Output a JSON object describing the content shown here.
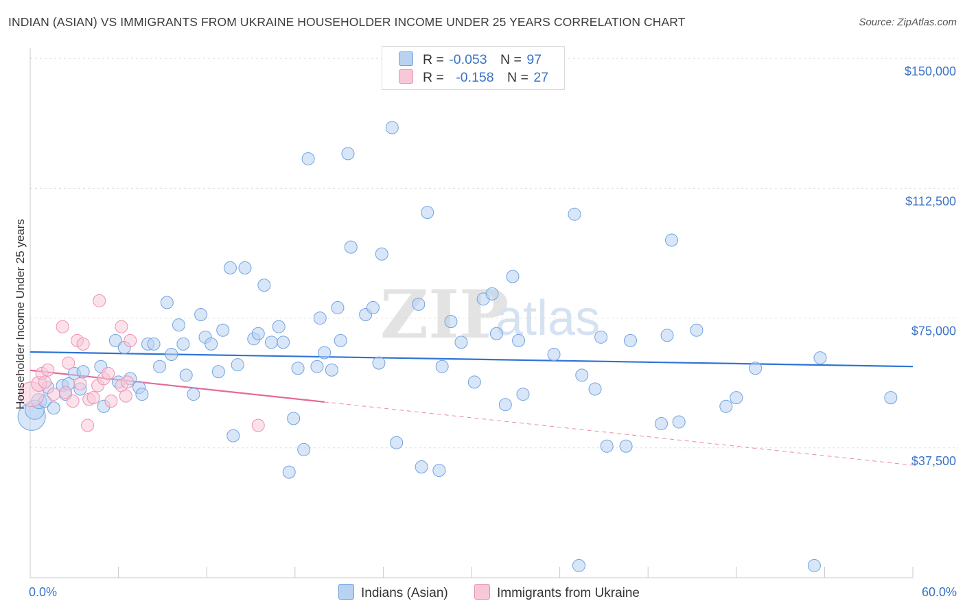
{
  "chart_data": {
    "type": "scatter",
    "title": "INDIAN (ASIAN) VS IMMIGRANTS FROM UKRAINE HOUSEHOLDER INCOME UNDER 25 YEARS CORRELATION CHART",
    "source": "Source: ZipAtlas.com",
    "watermark": {
      "zip": "ZIP",
      "atlas": "atlas"
    },
    "ylabel": "Householder Income Under 25 years",
    "xlim": [
      0,
      60
    ],
    "ylim": [
      0,
      153000
    ],
    "x_tick_labels": [
      "0.0%",
      "60.0%"
    ],
    "y_ticks": [
      37500,
      75000,
      112500,
      150000
    ],
    "y_tick_labels": [
      "$37,500",
      "$75,000",
      "$112,500",
      "$150,000"
    ],
    "legend": {
      "rows": [
        {
          "r_label": "R =",
          "r_value": "-0.053",
          "n_label": "N =",
          "n_value": "97"
        },
        {
          "r_label": "R =",
          "r_value": "-0.158",
          "n_label": "N =",
          "n_value": "27"
        }
      ]
    },
    "series": [
      {
        "name": "Indians (Asian)",
        "color": "#6fa3e0",
        "fill": "#b8d2f2",
        "trend": {
          "x0": 0,
          "y0": 65200,
          "x1": 60,
          "y1": 61000,
          "solid_to": 60
        },
        "points": [
          [
            0.1,
            46500,
            20
          ],
          [
            0.3,
            48500,
            14
          ],
          [
            0.6,
            51000,
            11
          ],
          [
            1,
            51000,
            9
          ],
          [
            1.2,
            55000,
            9
          ],
          [
            1.6,
            49000,
            9
          ],
          [
            2.2,
            55500,
            9
          ],
          [
            2.4,
            53000,
            9
          ],
          [
            2.6,
            56000,
            9
          ],
          [
            3,
            59000,
            9
          ],
          [
            3.4,
            54500,
            9
          ],
          [
            3.6,
            59500,
            9
          ],
          [
            4.8,
            61000,
            9
          ],
          [
            5,
            49500,
            9
          ],
          [
            5.8,
            68500,
            9
          ],
          [
            6,
            56500,
            9
          ],
          [
            6.4,
            66500,
            9
          ],
          [
            6.8,
            57500,
            9
          ],
          [
            7.4,
            55000,
            9
          ],
          [
            7.6,
            53000,
            9
          ],
          [
            8,
            67500,
            9
          ],
          [
            8.4,
            67500,
            9
          ],
          [
            8.8,
            61000,
            9
          ],
          [
            9.3,
            79500,
            9
          ],
          [
            9.6,
            64500,
            9
          ],
          [
            10.1,
            73000,
            9
          ],
          [
            10.4,
            67500,
            9
          ],
          [
            10.6,
            58500,
            9
          ],
          [
            11.1,
            53000,
            9
          ],
          [
            11.6,
            76000,
            9
          ],
          [
            11.9,
            69500,
            9
          ],
          [
            12.3,
            67500,
            9
          ],
          [
            12.8,
            59500,
            9
          ],
          [
            13.1,
            71500,
            9
          ],
          [
            13.6,
            89500,
            9
          ],
          [
            13.8,
            41000,
            9
          ],
          [
            14.1,
            61500,
            9
          ],
          [
            14.6,
            89500,
            9
          ],
          [
            15.2,
            69000,
            9
          ],
          [
            15.5,
            70500,
            9
          ],
          [
            15.9,
            84500,
            9
          ],
          [
            16.4,
            68000,
            9
          ],
          [
            16.9,
            72500,
            9
          ],
          [
            17.2,
            68000,
            9
          ],
          [
            17.6,
            30500,
            9
          ],
          [
            17.9,
            46000,
            9
          ],
          [
            18.2,
            60500,
            9
          ],
          [
            18.6,
            37000,
            9
          ],
          [
            18.9,
            121000,
            9
          ],
          [
            19.5,
            61000,
            9
          ],
          [
            19.7,
            75000,
            9
          ],
          [
            20,
            65000,
            9
          ],
          [
            20.5,
            60000,
            9
          ],
          [
            20.9,
            78000,
            9
          ],
          [
            21.1,
            68500,
            9
          ],
          [
            21.6,
            122500,
            9
          ],
          [
            21.8,
            95500,
            9
          ],
          [
            22.8,
            76000,
            9
          ],
          [
            23.3,
            78000,
            9
          ],
          [
            23.7,
            62000,
            9
          ],
          [
            23.9,
            93500,
            9
          ],
          [
            24.6,
            130000,
            9
          ],
          [
            24.9,
            39000,
            9
          ],
          [
            26.4,
            79000,
            9
          ],
          [
            26.6,
            32000,
            9
          ],
          [
            27,
            105500,
            9
          ],
          [
            27.8,
            31000,
            9
          ],
          [
            28,
            61000,
            9
          ],
          [
            28.6,
            74000,
            9
          ],
          [
            29.3,
            68000,
            9
          ],
          [
            30.2,
            56500,
            9
          ],
          [
            30.8,
            80500,
            9
          ],
          [
            31.4,
            82000,
            9
          ],
          [
            31.7,
            70500,
            9
          ],
          [
            32.3,
            50000,
            9
          ],
          [
            32.8,
            87000,
            9
          ],
          [
            33.2,
            68500,
            9
          ],
          [
            33.5,
            53000,
            9
          ],
          [
            35.6,
            64500,
            9
          ],
          [
            37,
            105000,
            9
          ],
          [
            37.3,
            3500,
            9
          ],
          [
            37.5,
            58500,
            9
          ],
          [
            38.4,
            54500,
            9
          ],
          [
            38.8,
            69500,
            9
          ],
          [
            39.2,
            38000,
            9
          ],
          [
            40.5,
            38000,
            9
          ],
          [
            40.8,
            68500,
            9
          ],
          [
            42.9,
            44500,
            9
          ],
          [
            43.3,
            70000,
            9
          ],
          [
            43.6,
            97500,
            9
          ],
          [
            44.1,
            45000,
            9
          ],
          [
            45.3,
            71500,
            9
          ],
          [
            47.3,
            49500,
            9
          ],
          [
            48,
            52000,
            9
          ],
          [
            49.3,
            60500,
            9
          ],
          [
            53.3,
            3500,
            9
          ],
          [
            53.7,
            63500,
            9
          ],
          [
            58.5,
            52000,
            9
          ]
        ]
      },
      {
        "name": "Immigrants from Ukraine",
        "color": "#ee8fb0",
        "fill": "#f8c8d8",
        "trend": {
          "x0": 0,
          "y0": 59900,
          "x1": 60,
          "y1": 32500,
          "solid_to": 20
        },
        "points": [
          [
            0.1,
            53000,
            18
          ],
          [
            0.6,
            56000,
            11
          ],
          [
            0.8,
            59000,
            9
          ],
          [
            1,
            56500,
            9
          ],
          [
            1.2,
            60000,
            9
          ],
          [
            1.6,
            53000,
            9
          ],
          [
            2.2,
            72500,
            9
          ],
          [
            2.4,
            53500,
            9
          ],
          [
            2.6,
            62000,
            9
          ],
          [
            2.9,
            51000,
            9
          ],
          [
            3.2,
            68500,
            9
          ],
          [
            3.4,
            56000,
            9
          ],
          [
            3.6,
            67500,
            9
          ],
          [
            3.9,
            44000,
            9
          ],
          [
            4,
            51500,
            9
          ],
          [
            4.3,
            52000,
            9
          ],
          [
            4.6,
            55500,
            9
          ],
          [
            4.7,
            80000,
            9
          ],
          [
            5,
            57500,
            9
          ],
          [
            5.3,
            59000,
            9
          ],
          [
            5.5,
            51000,
            9
          ],
          [
            6.2,
            72500,
            9
          ],
          [
            6.2,
            55500,
            9
          ],
          [
            6.5,
            52500,
            9
          ],
          [
            6.6,
            56500,
            9
          ],
          [
            6.8,
            68500,
            9
          ],
          [
            15.5,
            44000,
            9
          ]
        ]
      }
    ]
  }
}
